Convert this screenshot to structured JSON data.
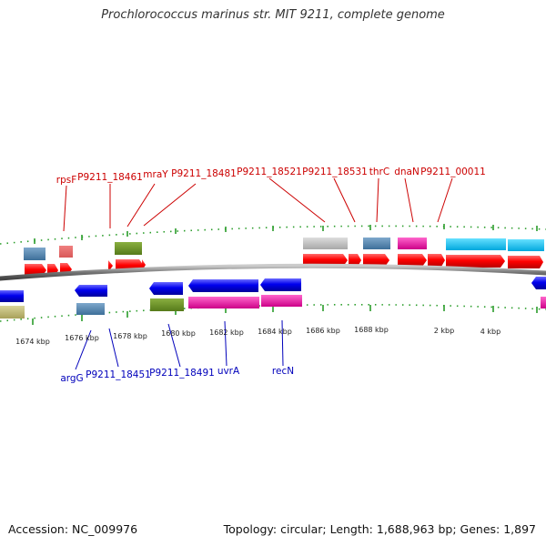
{
  "title": "Prochlorococcus marinus str. MIT 9211, complete genome",
  "footer": {
    "accession": "Accession: NC_009976",
    "topology": "Topology: circular; Length: 1,688,963 bp; Genes: 1,897"
  },
  "colors": {
    "upper_gene_label": "#cc0000",
    "lower_gene_label": "#0000bb",
    "forward_strand": "#ff0000",
    "reverse_strand": "#0000ee",
    "backbone": "#888888",
    "tick": "#2a9d2a"
  },
  "upper_gene_labels": [
    "rpsF",
    "P9211_18461",
    "mraY",
    "P9211_18481",
    "P9211_18521",
    "P9211_18531",
    "thrC",
    "dnaN",
    "P9211_00011"
  ],
  "lower_gene_labels": [
    "argG",
    "P9211_18451",
    "P9211_18491",
    "uvrA",
    "recN"
  ],
  "scale_labels": [
    "1674 kbp",
    "1676 kbp",
    "1678 kbp",
    "1680 kbp",
    "1682 kbp",
    "1684 kbp",
    "1686 kbp",
    "1688 kbp",
    "2 kbp",
    "4 kbp"
  ]
}
